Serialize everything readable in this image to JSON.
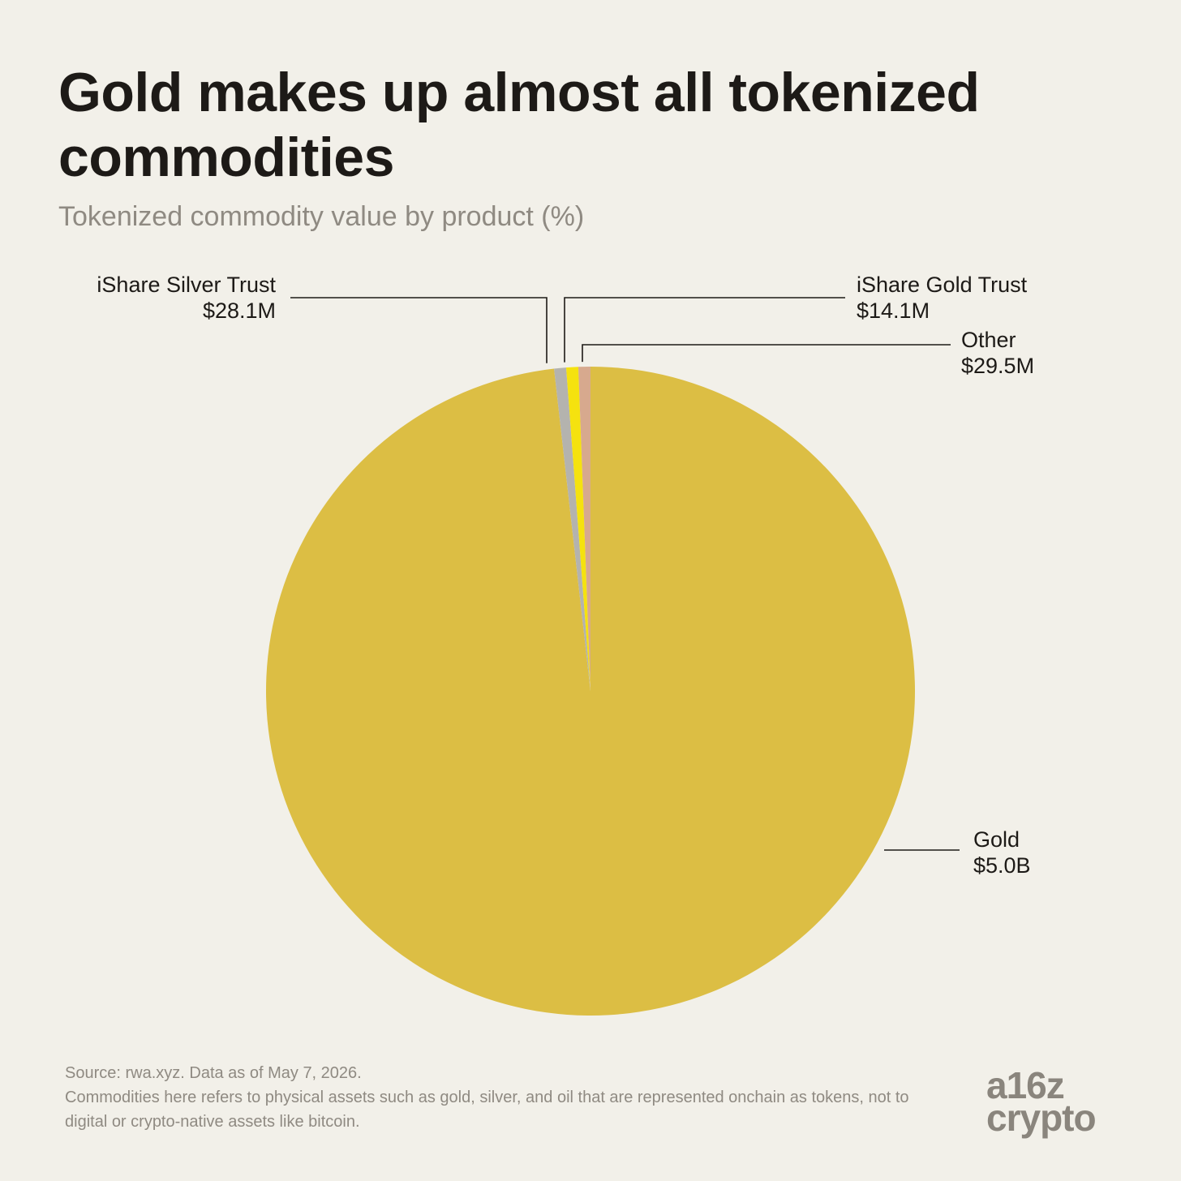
{
  "chart_data": {
    "type": "pie",
    "title": "Gold makes up almost all tokenized commodities",
    "subtitle": "Tokenized commodity value by product (%)",
    "slices": [
      {
        "label": "Gold",
        "value_text": "$5.0B",
        "value": 5000,
        "color": "#dcbe44"
      },
      {
        "label": "iShare Silver Trust",
        "value_text": "$28.1M",
        "value": 28.1,
        "color": "#b4b3ae"
      },
      {
        "label": "iShare Gold Trust",
        "value_text": "$14.1M",
        "value": 14.1,
        "color": "#f5e20f"
      },
      {
        "label": "Other",
        "value_text": "$29.5M",
        "value": 29.5,
        "color": "#d7a98e"
      }
    ],
    "units": "$M"
  },
  "footer": {
    "source": "Source: rwa.xyz. Data as of May 7, 2026.",
    "note": "Commodities here refers to physical assets such as gold, silver, and oil that are represented onchain as tokens, not to digital or crypto-native assets like bitcoin."
  },
  "logo": {
    "line1": "a16z",
    "line2": "crypto"
  }
}
